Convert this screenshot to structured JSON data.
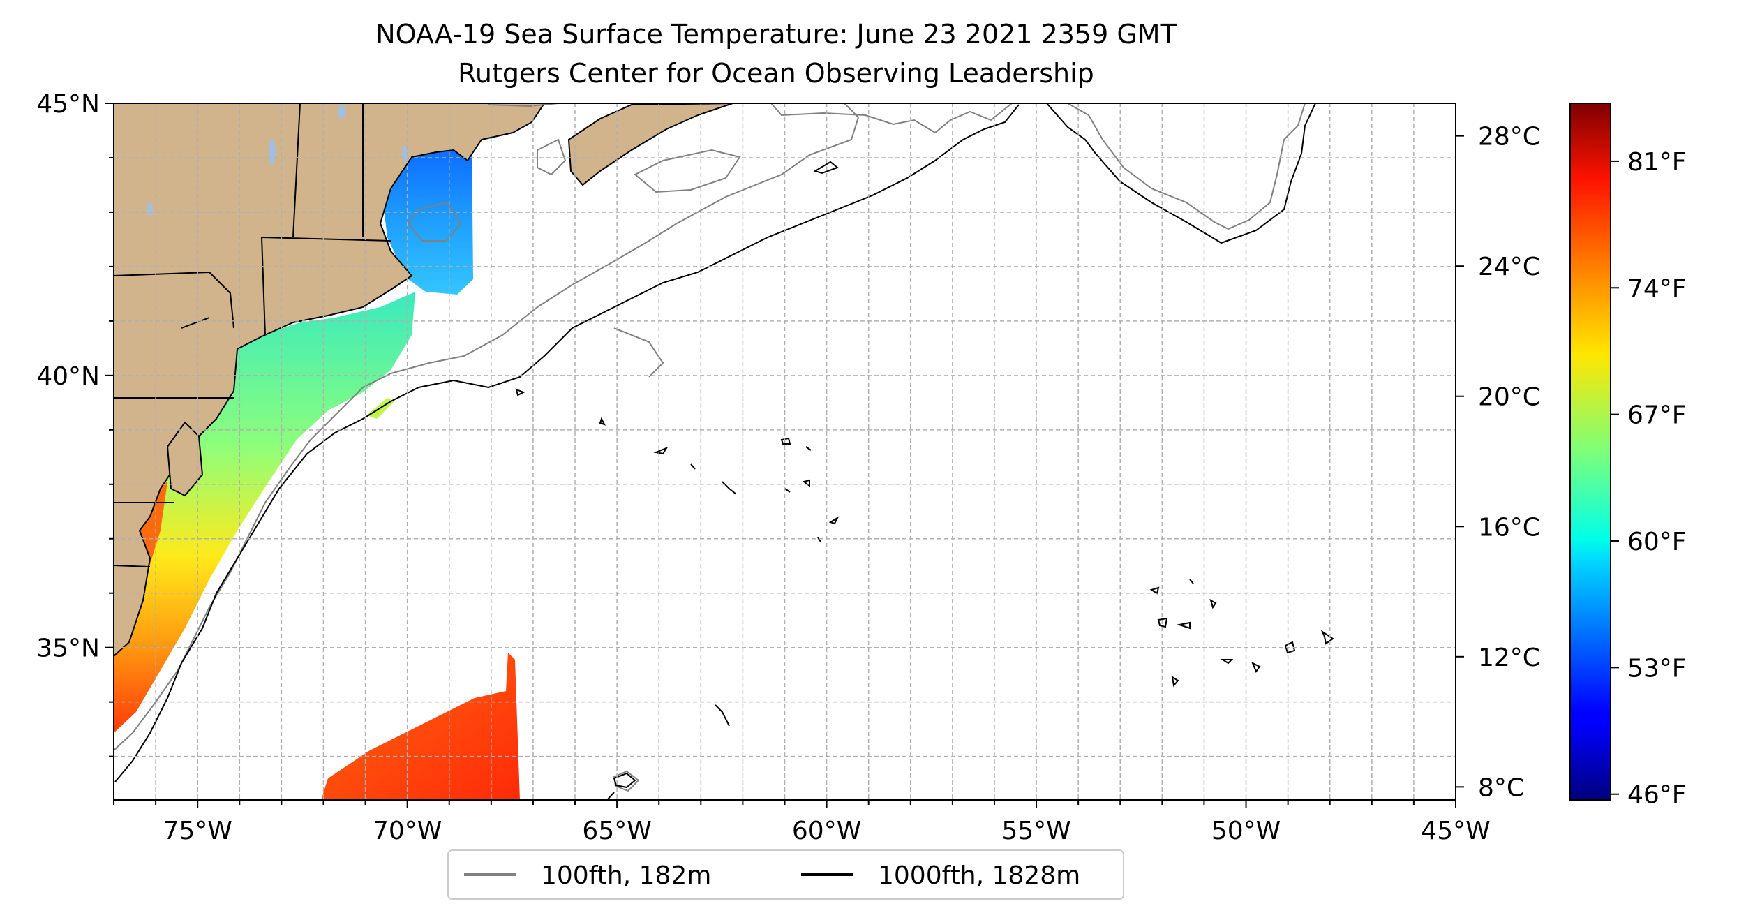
{
  "title": {
    "line1": "NOAA-19 Sea Surface Temperature: June 23 2021 2359 GMT",
    "line2": "Rutgers Center for Ocean Observing Leadership"
  },
  "map": {
    "lon_range": [
      -77,
      -45
    ],
    "lat_range": [
      32.2,
      45
    ],
    "land_color": "#d2b48c",
    "lake_color": "#a3bfe0",
    "x_ticks": [
      {
        "lon": -75,
        "label": "75°W"
      },
      {
        "lon": -70,
        "label": "70°W"
      },
      {
        "lon": -65,
        "label": "65°W"
      },
      {
        "lon": -60,
        "label": "60°W"
      },
      {
        "lon": -55,
        "label": "55°W"
      },
      {
        "lon": -50,
        "label": "50°W"
      },
      {
        "lon": -45,
        "label": "45°W"
      }
    ],
    "y_ticks": [
      {
        "lat": 45,
        "label": "45°N"
      },
      {
        "lat": 40,
        "label": "40°N"
      },
      {
        "lat": 35,
        "label": "35°N"
      }
    ]
  },
  "legend": {
    "items": [
      {
        "label": "100fth, 182m",
        "color": "#808080"
      },
      {
        "label": "1000fth, 1828m",
        "color": "#000000"
      }
    ]
  },
  "colorbar": {
    "colormap": "jet",
    "range_c": [
      7.6,
      29
    ],
    "celsius_ticks": [
      {
        "value": 28,
        "label": "28°C"
      },
      {
        "value": 24,
        "label": "24°C"
      },
      {
        "value": 20,
        "label": "20°C"
      },
      {
        "value": 16,
        "label": "16°C"
      },
      {
        "value": 12,
        "label": "12°C"
      },
      {
        "value": 8,
        "label": "8°C"
      }
    ],
    "fahrenheit_ticks": [
      {
        "value": 81,
        "label": "81°F"
      },
      {
        "value": 74,
        "label": "74°F"
      },
      {
        "value": 67,
        "label": "67°F"
      },
      {
        "value": 60,
        "label": "60°F"
      },
      {
        "value": 53,
        "label": "53°F"
      },
      {
        "value": 46,
        "label": "46°F"
      }
    ]
  }
}
